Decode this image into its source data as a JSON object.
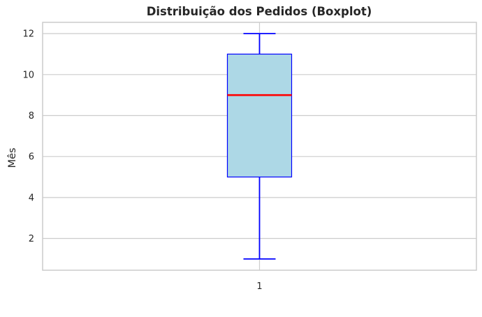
{
  "chart_data": {
    "type": "boxplot",
    "title": "Distribuição dos Pedidos (Boxplot)",
    "xlabel": "",
    "ylabel": "Mês",
    "categories": [
      "1"
    ],
    "boxes": [
      {
        "category": "1",
        "whisker_low": 1,
        "q1": 5,
        "median": 9,
        "q3": 11,
        "whisker_high": 12
      }
    ],
    "ylim": [
      0.45,
      12.55
    ],
    "yticks": [
      2,
      4,
      6,
      8,
      10,
      12
    ],
    "grid": true,
    "colors": {
      "box_fill": "#add8e6",
      "box_edge": "#0000ff",
      "whisker": "#0000ff",
      "median": "#ff0000",
      "grid": "#cccccc",
      "spine": "#cccccc"
    }
  }
}
